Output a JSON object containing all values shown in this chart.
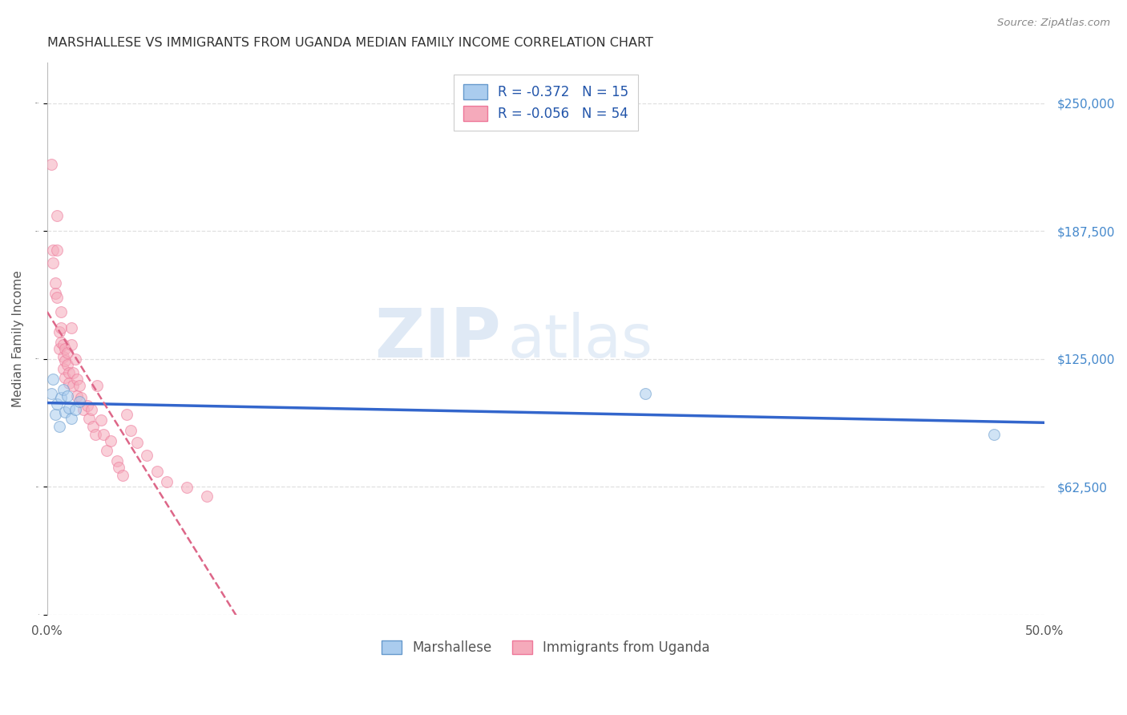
{
  "title": "MARSHALLESE VS IMMIGRANTS FROM UGANDA MEDIAN FAMILY INCOME CORRELATION CHART",
  "source": "Source: ZipAtlas.com",
  "ylabel": "Median Family Income",
  "xlim": [
    0,
    0.5
  ],
  "ylim": [
    0,
    270000
  ],
  "yticks": [
    0,
    62500,
    125000,
    187500,
    250000
  ],
  "ytick_labels": [
    "",
    "$62,500",
    "$125,000",
    "$187,500",
    "$250,000"
  ],
  "xticks": [
    0.0,
    0.1,
    0.2,
    0.3,
    0.4,
    0.5
  ],
  "xtick_labels": [
    "0.0%",
    "",
    "",
    "",
    "",
    "50.0%"
  ],
  "watermark_zip": "ZIP",
  "watermark_atlas": "atlas",
  "series1_name": "Marshallese",
  "series2_name": "Immigrants from Uganda",
  "series1_color": "#aaccee",
  "series2_color": "#f5aabb",
  "series1_edge_color": "#6699cc",
  "series2_edge_color": "#ee7799",
  "trend1_color": "#3366cc",
  "trend2_color": "#dd6688",
  "right_tick_color": "#4488cc",
  "grid_color": "#dddddd",
  "legend_r1": "R = -0.372",
  "legend_n1": "N = 15",
  "legend_r2": "R = -0.056",
  "legend_n2": "N = 54",
  "series1_x": [
    0.002,
    0.003,
    0.004,
    0.005,
    0.006,
    0.007,
    0.008,
    0.009,
    0.01,
    0.011,
    0.012,
    0.014,
    0.016,
    0.3,
    0.475
  ],
  "series1_y": [
    108000,
    115000,
    98000,
    103000,
    92000,
    106000,
    110000,
    99000,
    107000,
    101000,
    96000,
    100000,
    104000,
    108000,
    88000
  ],
  "series2_x": [
    0.002,
    0.003,
    0.003,
    0.004,
    0.004,
    0.005,
    0.005,
    0.005,
    0.006,
    0.006,
    0.007,
    0.007,
    0.007,
    0.008,
    0.008,
    0.008,
    0.009,
    0.009,
    0.009,
    0.01,
    0.01,
    0.011,
    0.011,
    0.012,
    0.012,
    0.013,
    0.013,
    0.014,
    0.015,
    0.015,
    0.016,
    0.017,
    0.018,
    0.02,
    0.021,
    0.022,
    0.023,
    0.024,
    0.025,
    0.027,
    0.028,
    0.03,
    0.032,
    0.035,
    0.036,
    0.038,
    0.04,
    0.042,
    0.045,
    0.05,
    0.055,
    0.06,
    0.07,
    0.08
  ],
  "series2_y": [
    220000,
    178000,
    172000,
    162000,
    157000,
    195000,
    178000,
    155000,
    138000,
    130000,
    148000,
    140000,
    133000,
    132000,
    126000,
    120000,
    130000,
    124000,
    116000,
    128000,
    122000,
    118000,
    113000,
    140000,
    132000,
    118000,
    112000,
    125000,
    115000,
    107000,
    112000,
    106000,
    100000,
    102000,
    96000,
    100000,
    92000,
    88000,
    112000,
    95000,
    88000,
    80000,
    85000,
    75000,
    72000,
    68000,
    98000,
    90000,
    84000,
    78000,
    70000,
    65000,
    62000,
    58000
  ],
  "background_color": "#ffffff",
  "marker_size": 100,
  "marker_alpha": 0.55
}
